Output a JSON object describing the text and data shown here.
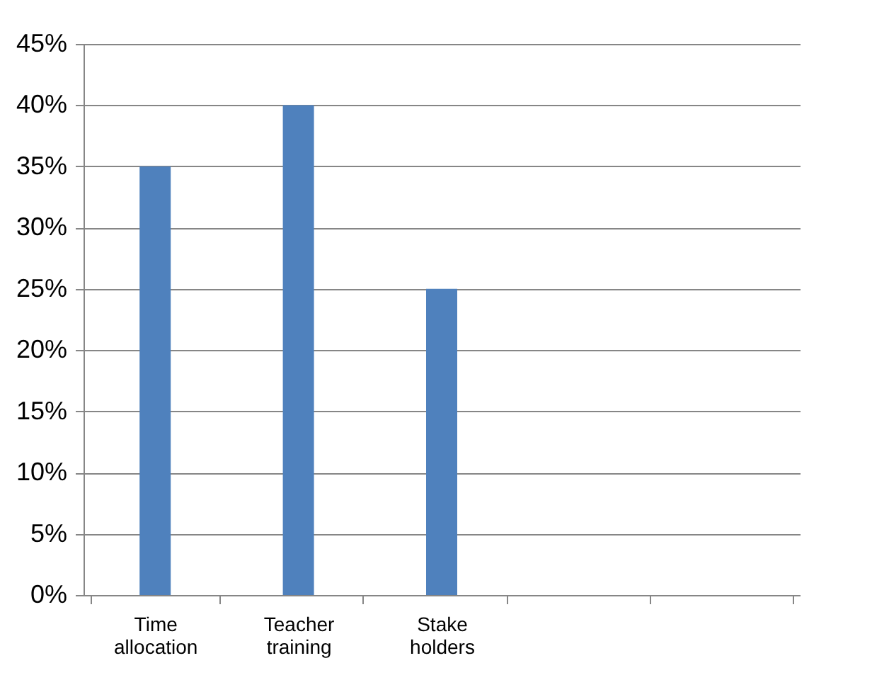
{
  "chart_data": {
    "type": "bar",
    "categories": [
      "Time allocation",
      "Teacher training",
      "Stake holders",
      null,
      null
    ],
    "values": [
      35,
      40,
      25,
      null,
      null
    ],
    "color": "#4f81bd",
    "ylim": [
      0,
      45
    ],
    "yticks": [
      {
        "value": 0,
        "label": "0%"
      },
      {
        "value": 5,
        "label": "5%"
      },
      {
        "value": 10,
        "label": "10%"
      },
      {
        "value": 15,
        "label": "15%"
      },
      {
        "value": 20,
        "label": "20%"
      },
      {
        "value": 25,
        "label": "25%"
      },
      {
        "value": 30,
        "label": "30%"
      },
      {
        "value": 35,
        "label": "35%"
      },
      {
        "value": 40,
        "label": "40%"
      },
      {
        "value": 45,
        "label": "45%"
      }
    ],
    "grid": "y"
  }
}
